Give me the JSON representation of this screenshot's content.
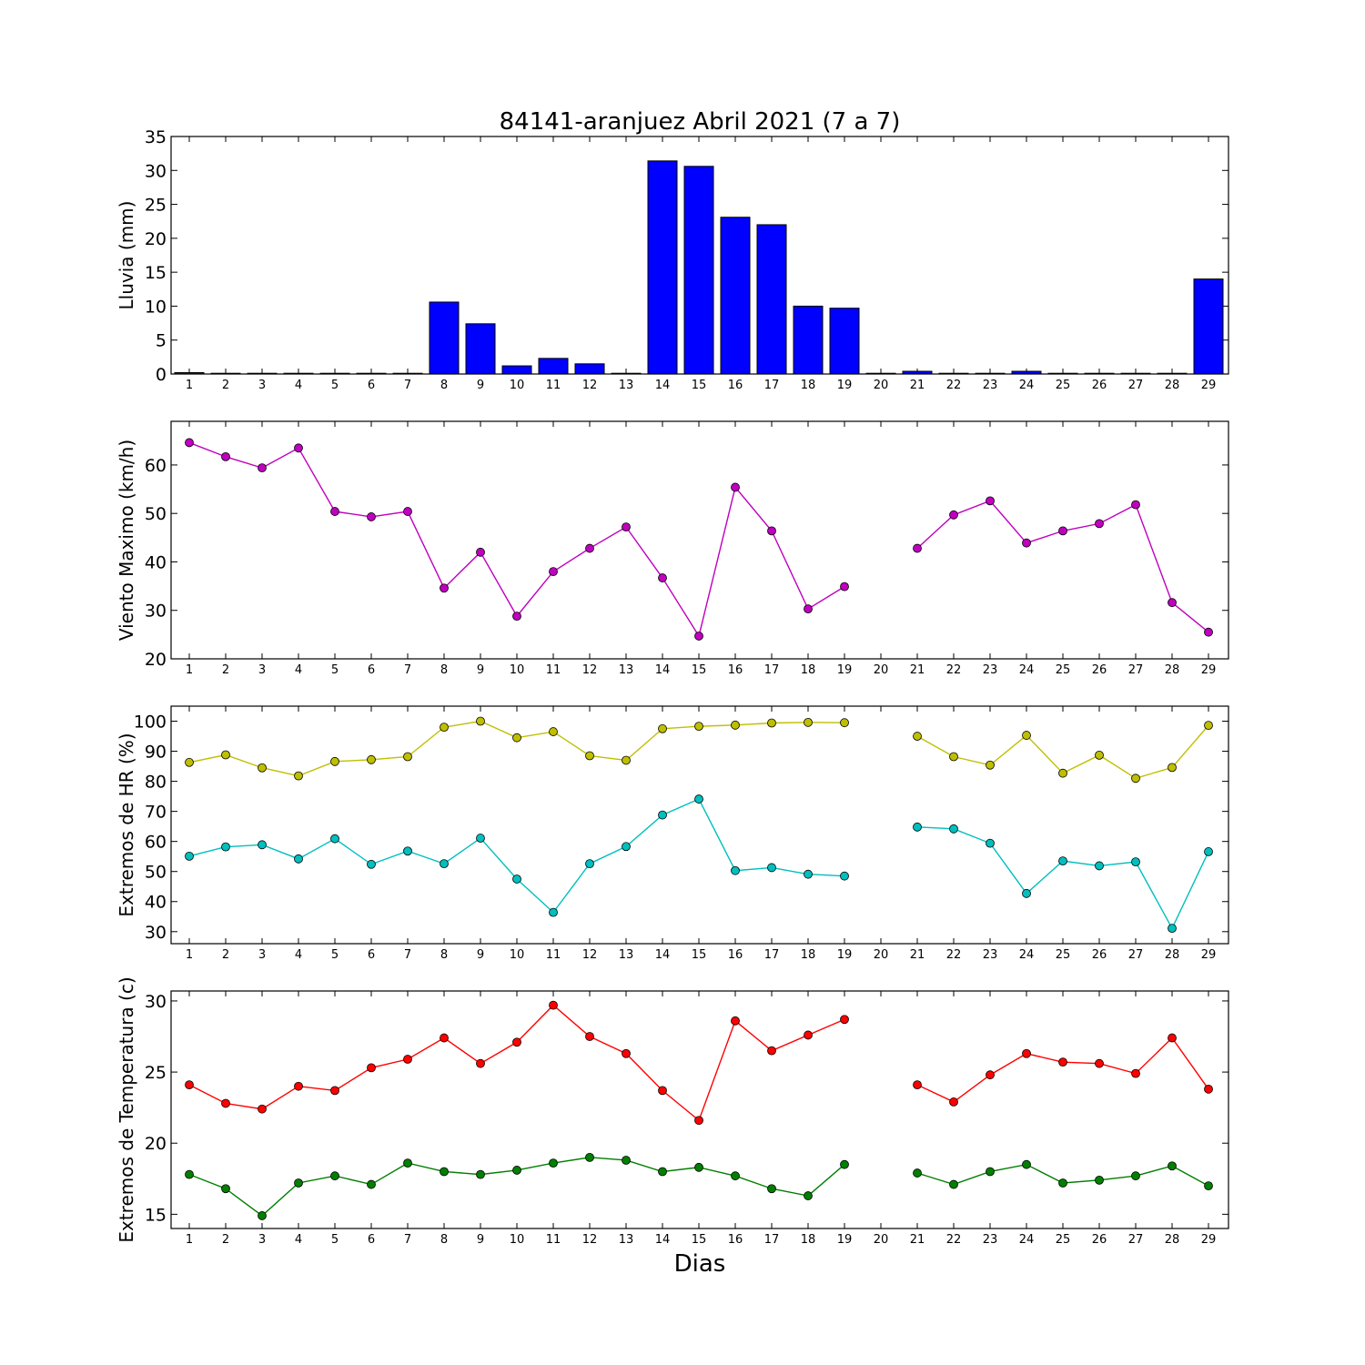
{
  "chart_data": {
    "type": "multi-panel",
    "title": "84141-aranjuez Abril 2021  (7 a 7)",
    "xlabel": "Dias",
    "x_categories": [
      "1",
      "2",
      "3",
      "4",
      "5",
      "6",
      "7",
      "8",
      "9",
      "10",
      "11",
      "12",
      "13",
      "14",
      "15",
      "16",
      "17",
      "18",
      "19",
      "20",
      "21",
      "22",
      "23",
      "24",
      "25",
      "26",
      "27",
      "28",
      "29"
    ],
    "panels": [
      {
        "type": "bar",
        "ylabel": "Lluvia (mm)",
        "ylim": [
          0,
          35
        ],
        "yticks": [
          0,
          5,
          10,
          15,
          20,
          25,
          30,
          35
        ],
        "series": [
          {
            "color": "#0000ff",
            "values": [
              0.2,
              0,
              0,
              0,
              0,
              0,
              0,
              10.6,
              7.4,
              1.2,
              2.3,
              1.5,
              0,
              31.4,
              30.6,
              23.1,
              22.0,
              10.0,
              9.7,
              0,
              0.4,
              0,
              0,
              0.4,
              0,
              0,
              0,
              0,
              14.0
            ]
          }
        ]
      },
      {
        "type": "line",
        "ylabel": "Viento Maximo (km/h)",
        "ylim": [
          20,
          69
        ],
        "yticks": [
          20,
          30,
          40,
          50,
          60
        ],
        "series": [
          {
            "color": "#bf00bf",
            "values": [
              64.6,
              61.7,
              59.4,
              63.5,
              50.4,
              49.3,
              50.4,
              34.6,
              42.0,
              28.8,
              38.0,
              42.8,
              47.2,
              36.7,
              24.7,
              55.4,
              46.4,
              30.3,
              34.9,
              null,
              42.8,
              49.7,
              52.6,
              43.9,
              46.4,
              47.9,
              51.8,
              31.6,
              25.5
            ]
          }
        ]
      },
      {
        "type": "line",
        "ylabel": "Extremos de HR (%)",
        "ylim": [
          26,
          105
        ],
        "yticks": [
          30,
          40,
          50,
          60,
          70,
          80,
          90,
          100
        ],
        "series": [
          {
            "color": "#bfbf00",
            "values": [
              86.3,
              88.8,
              84.5,
              81.8,
              86.6,
              87.2,
              88.2,
              98.0,
              100.0,
              94.5,
              96.5,
              88.5,
              87.0,
              97.5,
              98.3,
              98.7,
              99.4,
              99.6,
              99.5,
              null,
              95.0,
              88.2,
              85.4,
              95.3,
              82.7,
              88.7,
              81.0,
              84.6,
              98.6
            ]
          },
          {
            "color": "#00bfbf",
            "values": [
              55.1,
              58.2,
              58.9,
              54.2,
              60.9,
              52.4,
              56.8,
              52.6,
              61.1,
              47.5,
              36.4,
              52.6,
              58.3,
              68.8,
              74.1,
              50.3,
              51.3,
              49.1,
              48.5,
              null,
              64.8,
              64.2,
              59.4,
              42.7,
              53.5,
              51.9,
              53.2,
              31.1,
              56.6
            ]
          }
        ]
      },
      {
        "type": "line",
        "ylabel": "Extremos de Temperatura (c)",
        "ylim": [
          14,
          30.7
        ],
        "yticks": [
          15,
          20,
          25,
          30
        ],
        "series": [
          {
            "color": "#ff0000",
            "values": [
              24.1,
              22.8,
              22.4,
              24.0,
              23.7,
              25.3,
              25.9,
              27.4,
              25.6,
              27.1,
              29.7,
              27.5,
              26.3,
              23.7,
              21.6,
              28.6,
              26.5,
              27.6,
              28.7,
              null,
              24.1,
              22.9,
              24.8,
              26.3,
              25.7,
              25.6,
              24.9,
              27.4,
              23.8
            ]
          },
          {
            "color": "#007f00",
            "values": [
              17.8,
              16.8,
              14.9,
              17.2,
              17.7,
              17.1,
              18.6,
              18.0,
              17.8,
              18.1,
              18.6,
              19.0,
              18.8,
              18.0,
              18.3,
              17.7,
              16.8,
              16.3,
              18.5,
              null,
              17.9,
              17.1,
              18.0,
              18.5,
              17.2,
              17.4,
              17.7,
              18.4,
              17.0
            ]
          }
        ]
      }
    ]
  }
}
